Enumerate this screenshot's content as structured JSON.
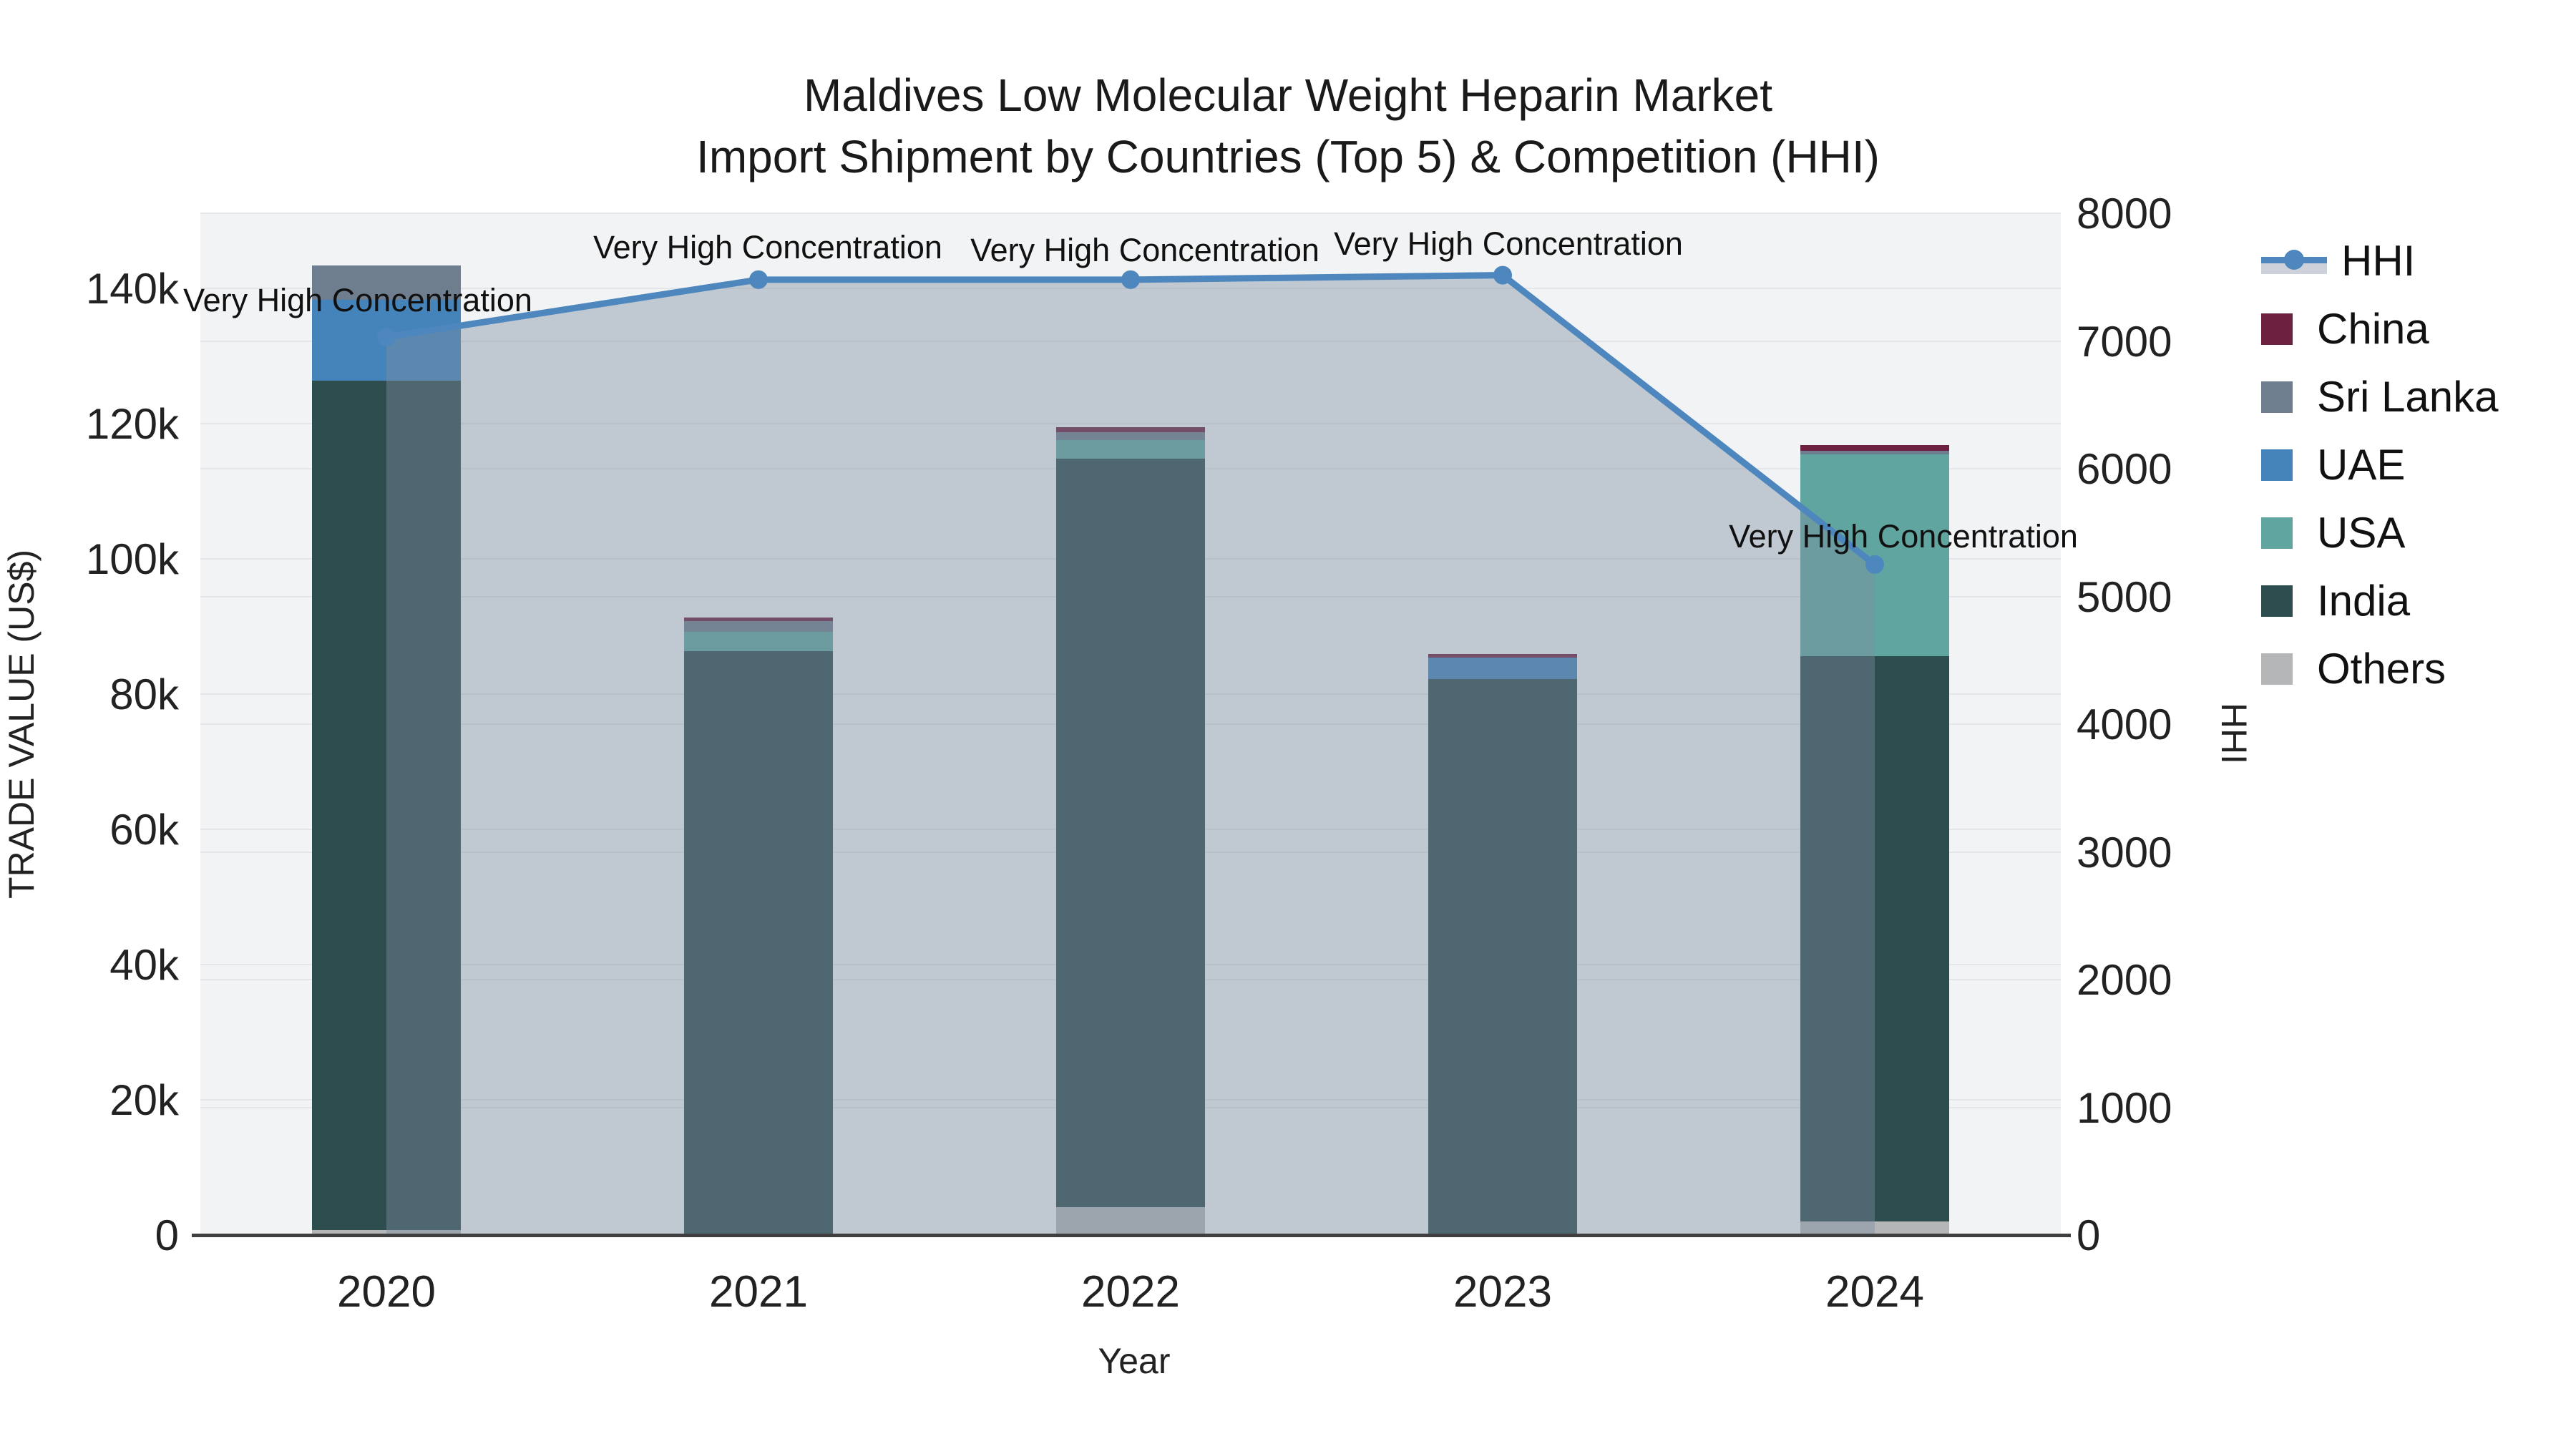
{
  "title": {
    "line1": "Maldives Low Molecular Weight Heparin Market",
    "line2": "Import Shipment by Countries (Top 5) & Competition (HHI)"
  },
  "colors": {
    "HHI": "#4d87bd",
    "China": "#6e2040",
    "Sri Lanka": "#6e7e8e",
    "UAE": "#4583bb",
    "USA": "#61a5a0",
    "India": "#2d4d4f",
    "Others": "#b4b6b8",
    "area_fill": "rgba(125,140,160,0.42)",
    "plot_bg": "#f2f3f4",
    "gridline": "#e4e6e9",
    "axis_line": "#3f3f3f"
  },
  "legend": {
    "order": [
      "HHI",
      "China",
      "Sri Lanka",
      "UAE",
      "USA",
      "India",
      "Others"
    ]
  },
  "chart_data": {
    "type": "bar+line",
    "title": "Maldives Low Molecular Weight Heparin Market — Import Shipment by Countries (Top 5) & Competition (HHI)",
    "categories": [
      "2020",
      "2021",
      "2022",
      "2023",
      "2024"
    ],
    "xlabel": "Year",
    "bar_axis": {
      "label": "TRADE VALUE (US$)",
      "tick_labels": [
        "0",
        "20k",
        "40k",
        "60k",
        "80k",
        "100k",
        "120k",
        "140k"
      ],
      "tick_values": [
        0,
        20000,
        40000,
        60000,
        80000,
        100000,
        120000,
        140000
      ],
      "ylim": [
        0,
        151300
      ]
    },
    "line_axis": {
      "label": "HHI",
      "tick_labels": [
        "0",
        "1000",
        "2000",
        "3000",
        "4000",
        "5000",
        "6000",
        "7000",
        "8000"
      ],
      "tick_values": [
        0,
        1000,
        2000,
        3000,
        4000,
        5000,
        6000,
        7000,
        8000
      ],
      "ylim": [
        0,
        8000
      ]
    },
    "stack_order_bottom_to_top": [
      "Others",
      "India",
      "USA",
      "UAE",
      "Sri Lanka",
      "China"
    ],
    "series": [
      {
        "name": "Others",
        "values": [
          700,
          0,
          4100,
          0,
          2000
        ]
      },
      {
        "name": "India",
        "values": [
          125600,
          86300,
          110700,
          82200,
          83600
        ]
      },
      {
        "name": "USA",
        "values": [
          0,
          2900,
          2750,
          0,
          29800
        ]
      },
      {
        "name": "UAE",
        "values": [
          12000,
          0,
          0,
          3180,
          0
        ]
      },
      {
        "name": "Sri Lanka",
        "values": [
          5100,
          1600,
          1170,
          0,
          530
        ]
      },
      {
        "name": "China",
        "values": [
          0,
          500,
          740,
          530,
          950
        ]
      }
    ],
    "line_series": {
      "name": "HHI",
      "axis": "right",
      "values": [
        7030,
        7480,
        7480,
        7515,
        5250
      ]
    },
    "annotations": [
      {
        "text": "Very High Concentration",
        "x": 500,
        "y": 420
      },
      {
        "text": "Very High Concentration",
        "x": 1073,
        "y": 346
      },
      {
        "text": "Very High Concentration",
        "x": 1600,
        "y": 350
      },
      {
        "text": "Very High Concentration",
        "x": 2108,
        "y": 341
      },
      {
        "text": "Very High Concentration",
        "x": 2660,
        "y": 750
      }
    ],
    "legend_position": "right",
    "grid": true
  }
}
